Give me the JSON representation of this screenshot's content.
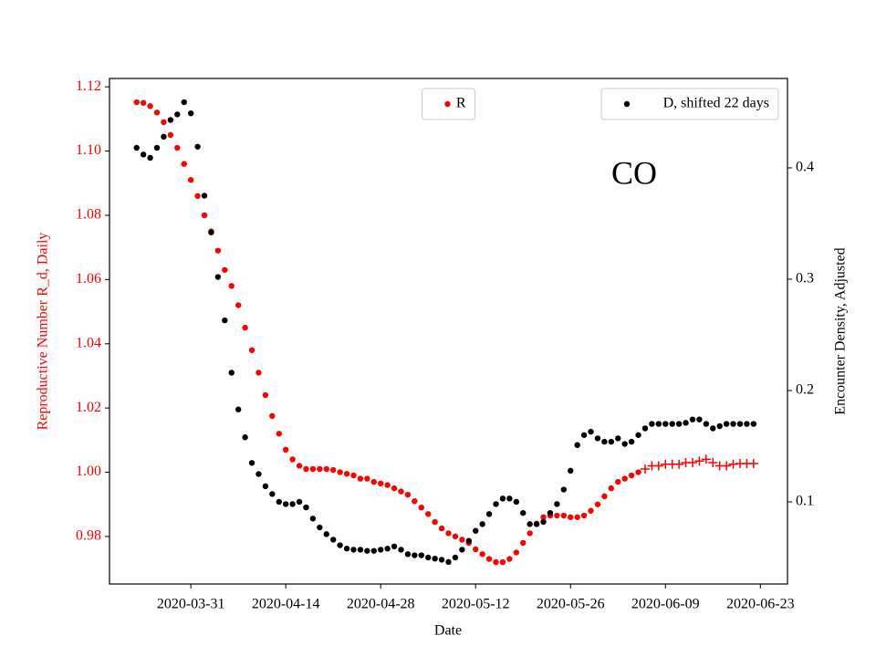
{
  "chart_data": {
    "type": "scatter",
    "xlabel": "Date",
    "ylabel": "Reproductive Number R_d, Daily",
    "y2label": "Encounter Density, Adjusted",
    "annotation": "CO",
    "x": [
      "2020-03-23",
      "2020-03-24",
      "2020-03-25",
      "2020-03-26",
      "2020-03-27",
      "2020-03-28",
      "2020-03-29",
      "2020-03-30",
      "2020-03-31",
      "2020-04-01",
      "2020-04-02",
      "2020-04-03",
      "2020-04-04",
      "2020-04-05",
      "2020-04-06",
      "2020-04-07",
      "2020-04-08",
      "2020-04-09",
      "2020-04-10",
      "2020-04-11",
      "2020-04-12",
      "2020-04-13",
      "2020-04-14",
      "2020-04-15",
      "2020-04-16",
      "2020-04-17",
      "2020-04-18",
      "2020-04-19",
      "2020-04-20",
      "2020-04-21",
      "2020-04-22",
      "2020-04-23",
      "2020-04-24",
      "2020-04-25",
      "2020-04-26",
      "2020-04-27",
      "2020-04-28",
      "2020-04-29",
      "2020-04-30",
      "2020-05-01",
      "2020-05-02",
      "2020-05-03",
      "2020-05-04",
      "2020-05-05",
      "2020-05-06",
      "2020-05-07",
      "2020-05-08",
      "2020-05-09",
      "2020-05-10",
      "2020-05-11",
      "2020-05-12",
      "2020-05-13",
      "2020-05-14",
      "2020-05-15",
      "2020-05-16",
      "2020-05-17",
      "2020-05-18",
      "2020-05-19",
      "2020-05-20",
      "2020-05-21",
      "2020-05-22",
      "2020-05-23",
      "2020-05-24",
      "2020-05-25",
      "2020-05-26",
      "2020-05-27",
      "2020-05-28",
      "2020-05-29",
      "2020-05-30",
      "2020-05-31",
      "2020-06-01",
      "2020-06-02",
      "2020-06-03",
      "2020-06-04",
      "2020-06-05",
      "2020-06-06",
      "2020-06-07",
      "2020-06-08",
      "2020-06-09",
      "2020-06-10",
      "2020-06-11",
      "2020-06-12",
      "2020-06-13",
      "2020-06-14",
      "2020-06-15",
      "2020-06-16",
      "2020-06-17",
      "2020-06-18",
      "2020-06-19",
      "2020-06-20",
      "2020-06-21",
      "2020-06-22"
    ],
    "series": [
      {
        "name": "R",
        "color": "#ff0000",
        "marker": "o",
        "legend_loc": "upper center",
        "values": [
          1.1152,
          1.115,
          1.114,
          1.112,
          1.109,
          1.105,
          1.101,
          1.096,
          1.091,
          1.086,
          1.08,
          1.075,
          1.069,
          1.063,
          1.058,
          1.052,
          1.045,
          1.038,
          1.031,
          1.024,
          1.0175,
          1.012,
          1.007,
          1.004,
          1.002,
          1.001,
          1.001,
          1.001,
          1.001,
          1.0007,
          1.0,
          0.9995,
          0.999,
          0.998,
          0.998,
          0.997,
          0.9965,
          0.996,
          0.995,
          0.994,
          0.993,
          0.991,
          0.989,
          0.987,
          0.9845,
          0.9825,
          0.981,
          0.98,
          0.979,
          0.978,
          0.976,
          0.9745,
          0.973,
          0.972,
          0.972,
          0.973,
          0.975,
          0.978,
          0.981,
          0.984,
          0.986,
          0.9865,
          0.9865,
          0.9865,
          0.986,
          0.986,
          0.9865,
          0.988,
          0.99,
          0.9925,
          0.995,
          0.997,
          0.998,
          0.999,
          1.0,
          null,
          null,
          null,
          null,
          null,
          null,
          null,
          null,
          null,
          null,
          null,
          null,
          null,
          null,
          null,
          null,
          null
        ]
      },
      {
        "color": "#ff0000",
        "marker": "+",
        "values": [
          null,
          null,
          null,
          null,
          null,
          null,
          null,
          null,
          null,
          null,
          null,
          null,
          null,
          null,
          null,
          null,
          null,
          null,
          null,
          null,
          null,
          null,
          null,
          null,
          null,
          null,
          null,
          null,
          null,
          null,
          null,
          null,
          null,
          null,
          null,
          null,
          null,
          null,
          null,
          null,
          null,
          null,
          null,
          null,
          null,
          null,
          null,
          null,
          null,
          null,
          null,
          null,
          null,
          null,
          null,
          null,
          null,
          null,
          null,
          null,
          null,
          null,
          null,
          null,
          null,
          null,
          null,
          null,
          null,
          null,
          null,
          null,
          null,
          null,
          null,
          1.001,
          1.002,
          1.002,
          1.0025,
          1.0025,
          1.0025,
          1.003,
          1.003,
          1.0035,
          1.004,
          1.003,
          1.002,
          1.002,
          1.0025,
          1.0027,
          1.0027,
          1.0027
        ]
      },
      {
        "name": "D, shifted 22 days",
        "color": "#000000",
        "marker": "o",
        "axis": "y2",
        "legend_loc": "upper right",
        "values": [
          0.418,
          0.412,
          0.409,
          0.418,
          0.428,
          0.443,
          0.448,
          0.459,
          0.449,
          0.419,
          0.375,
          0.342,
          0.302,
          0.263,
          0.216,
          0.183,
          0.158,
          0.135,
          0.125,
          0.114,
          0.107,
          0.1,
          0.098,
          0.098,
          0.1,
          0.095,
          0.085,
          0.077,
          0.071,
          0.066,
          0.061,
          0.058,
          0.057,
          0.057,
          0.056,
          0.056,
          0.057,
          0.058,
          0.06,
          0.057,
          0.053,
          0.052,
          0.052,
          0.05,
          0.049,
          0.048,
          0.046,
          0.05,
          0.057,
          0.065,
          0.074,
          0.08,
          0.089,
          0.098,
          0.103,
          0.103,
          0.1,
          0.09,
          0.08,
          0.08,
          0.082,
          0.09,
          0.098,
          0.111,
          0.128,
          0.151,
          0.16,
          0.163,
          0.157,
          0.154,
          0.154,
          0.157,
          0.152,
          0.154,
          0.16,
          0.166,
          0.17,
          0.17,
          0.17,
          0.17,
          0.17,
          0.171,
          0.174,
          0.174,
          0.17,
          0.166,
          0.168,
          0.17,
          0.17,
          0.17,
          0.17,
          0.17
        ]
      }
    ],
    "xlim": [
      "2020-03-19",
      "2020-06-27"
    ],
    "xticks": [
      "2020-03-31",
      "2020-04-14",
      "2020-04-28",
      "2020-05-12",
      "2020-05-26",
      "2020-06-09",
      "2020-06-23"
    ],
    "ylim": [
      0.9652,
      1.1226
    ],
    "yticks": [
      0.98,
      {
        "value": 1,
        "label": "1.00"
      },
      1.02,
      1.04,
      1.06,
      1.08,
      {
        "value": 1.1,
        "label": "1.10"
      },
      1.12
    ],
    "ylabel_color": "#ff0000",
    "y2lim": [
      0.0262,
      0.4803
    ],
    "y2ticks": [
      0.1,
      0.2,
      0.3,
      0.4
    ]
  }
}
